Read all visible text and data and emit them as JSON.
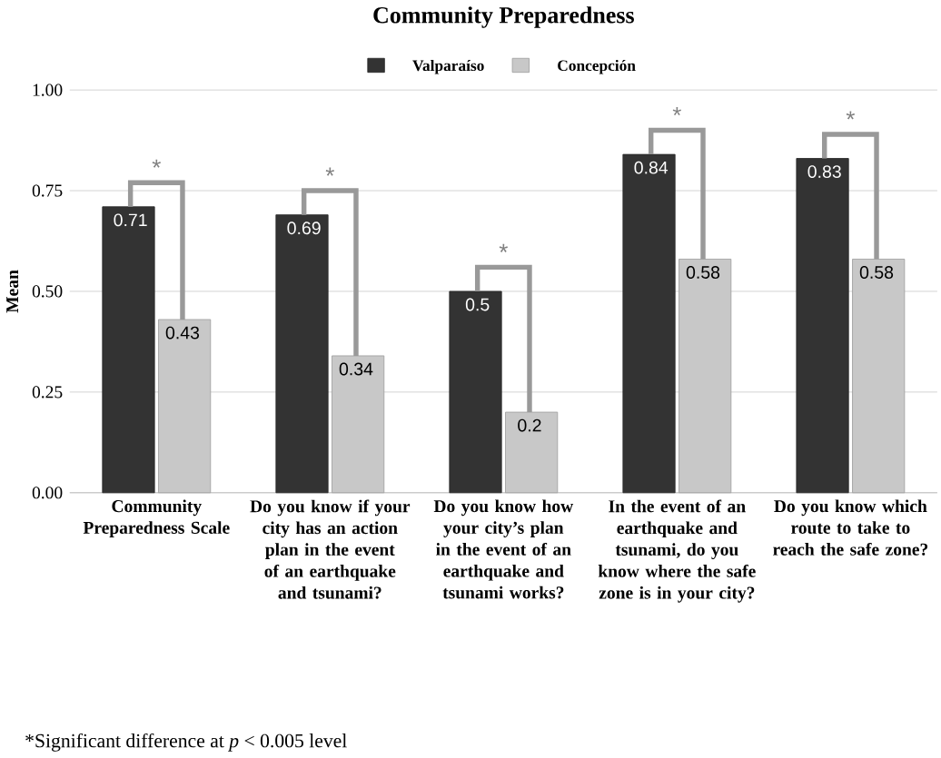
{
  "chart_data": {
    "type": "bar",
    "title": "Community Preparedness",
    "ylabel": "Mean",
    "categories": [
      "Community Preparedness Scale",
      "Do you know if your city has an action plan in the event of an earthquake and tsunami?",
      "Do you know how your city’s plan in the event of an earthquake and tsunami works?",
      "In the event of an earthquake and tsunami, do you know where the safe zone is in your city?",
      "Do you know which route to take to reach the safe zone?"
    ],
    "series": [
      {
        "name": "Valparaíso",
        "color": "#333333",
        "values": [
          0.71,
          0.69,
          0.5,
          0.84,
          0.83
        ]
      },
      {
        "name": "Concepción",
        "color": "#c8c8c8",
        "values": [
          0.43,
          0.34,
          0.2,
          0.58,
          0.58
        ]
      }
    ],
    "ylim": [
      0,
      1
    ],
    "yticks": [
      {
        "value": 0,
        "label": "0.00"
      },
      {
        "value": 0.25,
        "label": "0.25"
      },
      {
        "value": 0.5,
        "label": "0.50"
      },
      {
        "value": 0.75,
        "label": "0.75"
      },
      {
        "value": 1,
        "label": "1.00"
      }
    ],
    "grid": "y",
    "legend": "top",
    "data_labels": true,
    "annotations": [
      "*",
      "*",
      "*",
      "*",
      "*",
      "*Significant difference at *p* < 0.005 level"
    ]
  }
}
